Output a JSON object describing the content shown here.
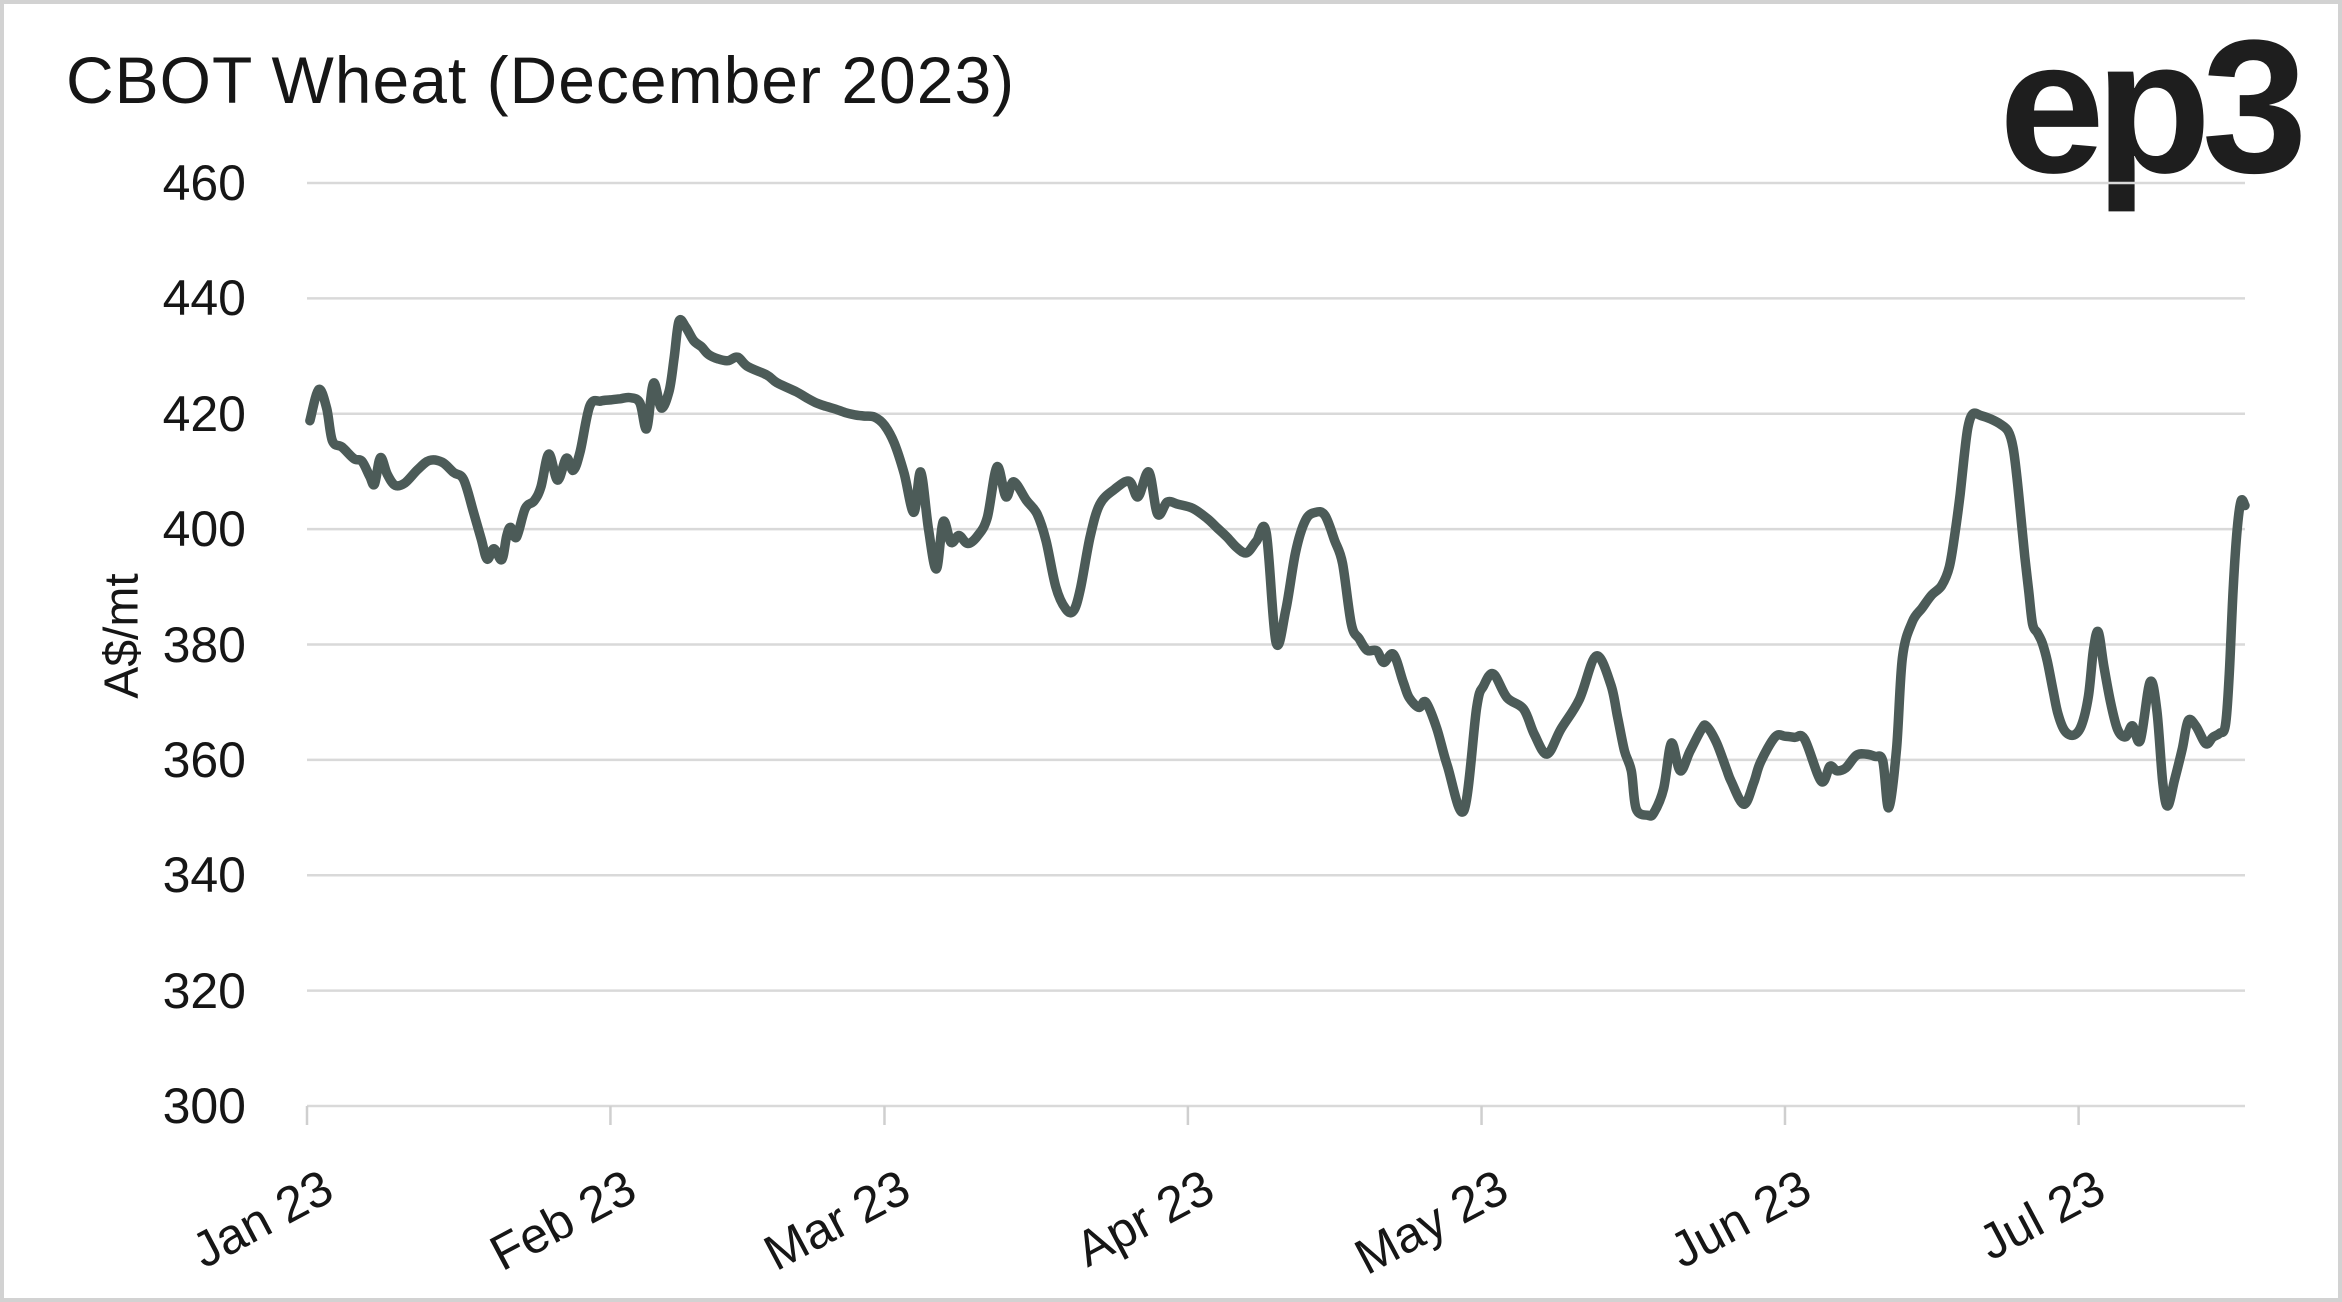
{
  "header": {
    "title": "CBOT Wheat (December 2023)",
    "logo_text": "ep3"
  },
  "colors": {
    "line": "#4c5b58",
    "grid": "#d9d9d9",
    "axis": "#cfcfcf",
    "text": "#161616",
    "logo": "#1e1e1e",
    "frame_border": "#d2d2d2"
  },
  "chart_data": {
    "type": "line",
    "title": "CBOT Wheat (December 2023)",
    "xlabel": "",
    "ylabel": "A$/mt",
    "ylim": [
      300,
      460
    ],
    "ytick_interval": 20,
    "yticks": [
      460,
      440,
      420,
      400,
      380,
      360,
      340,
      320,
      300
    ],
    "grid": "horizontal",
    "legend": "none",
    "x_range": [
      0,
      198
    ],
    "x_unit": "days since 1 Jan 2023",
    "xtick_labels": [
      "Jan 23",
      "Feb 23",
      "Mar 23",
      "Apr 23",
      "May 23",
      "Jun 23",
      "Jul 23"
    ],
    "xtick_days": [
      0,
      31,
      59,
      90,
      120,
      151,
      181
    ],
    "series": [
      {
        "name": "CBOT Wheat December 2023 futures (A$/mt)",
        "color": "#4c5b58",
        "points": [
          [
            0.3,
            418.8
          ],
          [
            1.2,
            424.2
          ],
          [
            2,
            421.0
          ],
          [
            2.6,
            415.3
          ],
          [
            3.6,
            414.2
          ],
          [
            4.8,
            412.2
          ],
          [
            5.6,
            411.8
          ],
          [
            6.4,
            409.2
          ],
          [
            6.9,
            407.8
          ],
          [
            7.5,
            412.4
          ],
          [
            8.2,
            409.5
          ],
          [
            9,
            407.6
          ],
          [
            10,
            408.0
          ],
          [
            11.3,
            410.3
          ],
          [
            12.5,
            411.9
          ],
          [
            13.8,
            411.6
          ],
          [
            15,
            409.8
          ],
          [
            16,
            408.6
          ],
          [
            17,
            403.0
          ],
          [
            17.8,
            398.3
          ],
          [
            18.4,
            394.8
          ],
          [
            19.1,
            396.6
          ],
          [
            19.9,
            394.7
          ],
          [
            20.4,
            398.8
          ],
          [
            20.8,
            400.3
          ],
          [
            21.4,
            398.6
          ],
          [
            22.3,
            403.6
          ],
          [
            23.2,
            404.9
          ],
          [
            23.9,
            407.3
          ],
          [
            24.7,
            413.0
          ],
          [
            25.6,
            408.5
          ],
          [
            26.5,
            412.3
          ],
          [
            27.2,
            410.2
          ],
          [
            27.9,
            413.4
          ],
          [
            28.9,
            421.4
          ],
          [
            30,
            422.2
          ],
          [
            31,
            422.4
          ],
          [
            32,
            422.6
          ],
          [
            33,
            422.8
          ],
          [
            34,
            421.9
          ],
          [
            34.7,
            417.4
          ],
          [
            35.4,
            425.3
          ],
          [
            36.2,
            421.0
          ],
          [
            37,
            424.0
          ],
          [
            37.5,
            429.5
          ],
          [
            38,
            436.0
          ],
          [
            38.7,
            435.0
          ],
          [
            39.5,
            432.7
          ],
          [
            40.3,
            431.6
          ],
          [
            41,
            430.3
          ],
          [
            42,
            429.5
          ],
          [
            43,
            429.2
          ],
          [
            44,
            429.8
          ],
          [
            45,
            428.2
          ],
          [
            47,
            426.7
          ],
          [
            48,
            425.4
          ],
          [
            50,
            423.8
          ],
          [
            51,
            422.8
          ],
          [
            52,
            421.9
          ],
          [
            53,
            421.3
          ],
          [
            54,
            420.8
          ],
          [
            55,
            420.2
          ],
          [
            56,
            419.8
          ],
          [
            57,
            419.6
          ],
          [
            58,
            419.4
          ],
          [
            59,
            418.0
          ],
          [
            60,
            414.9
          ],
          [
            61,
            409.7
          ],
          [
            62,
            402.9
          ],
          [
            62.7,
            409.9
          ],
          [
            63.5,
            400.0
          ],
          [
            64.3,
            393.1
          ],
          [
            65,
            401.3
          ],
          [
            65.8,
            397.7
          ],
          [
            66.6,
            398.9
          ],
          [
            67.5,
            397.5
          ],
          [
            68.5,
            398.8
          ],
          [
            69.5,
            402.0
          ],
          [
            70.5,
            410.8
          ],
          [
            71.4,
            405.6
          ],
          [
            72.2,
            408.2
          ],
          [
            73.5,
            405.0
          ],
          [
            74.6,
            402.6
          ],
          [
            75.5,
            398.0
          ],
          [
            76.5,
            390.0
          ],
          [
            77.5,
            386.2
          ],
          [
            78.3,
            385.8
          ],
          [
            79,
            389.5
          ],
          [
            80,
            398.6
          ],
          [
            81,
            404.3
          ],
          [
            82.5,
            406.9
          ],
          [
            84,
            408.3
          ],
          [
            84.9,
            405.6
          ],
          [
            86,
            409.9
          ],
          [
            86.9,
            402.6
          ],
          [
            87.9,
            404.7
          ],
          [
            89,
            404.3
          ],
          [
            90.5,
            403.6
          ],
          [
            92,
            401.8
          ],
          [
            93,
            400.2
          ],
          [
            94,
            398.6
          ],
          [
            95,
            396.8
          ],
          [
            96,
            395.9
          ],
          [
            97,
            397.9
          ],
          [
            98,
            399.4
          ],
          [
            99,
            380.4
          ],
          [
            100,
            386.0
          ],
          [
            101,
            396.0
          ],
          [
            102,
            401.5
          ],
          [
            103,
            402.9
          ],
          [
            104,
            402.4
          ],
          [
            105,
            398.0
          ],
          [
            105.8,
            394.0
          ],
          [
            106.7,
            383.5
          ],
          [
            107.5,
            381.0
          ],
          [
            108.3,
            379.0
          ],
          [
            109.3,
            378.9
          ],
          [
            110,
            376.9
          ],
          [
            111,
            378.3
          ],
          [
            112,
            373.5
          ],
          [
            112.6,
            370.8
          ],
          [
            113.6,
            369.1
          ],
          [
            114.3,
            370.0
          ],
          [
            115.4,
            365.6
          ],
          [
            116.5,
            359.0
          ],
          [
            118.2,
            351.2
          ],
          [
            119.5,
            369.1
          ],
          [
            120.2,
            372.8
          ],
          [
            121.2,
            374.9
          ],
          [
            122.6,
            370.8
          ],
          [
            124.3,
            368.8
          ],
          [
            125.4,
            364.4
          ],
          [
            126.7,
            361.0
          ],
          [
            128.1,
            365.3
          ],
          [
            130,
            370.5
          ],
          [
            131.7,
            378.0
          ],
          [
            133.2,
            373.1
          ],
          [
            133.9,
            367.4
          ],
          [
            134.6,
            361.6
          ],
          [
            135.3,
            358.1
          ],
          [
            135.8,
            351.5
          ],
          [
            137,
            350.4
          ],
          [
            137.6,
            350.8
          ],
          [
            138.6,
            355.0
          ],
          [
            139.4,
            362.9
          ],
          [
            140.3,
            358.1
          ],
          [
            141.3,
            361.5
          ],
          [
            142.5,
            365.4
          ],
          [
            143,
            365.8
          ],
          [
            144,
            363.0
          ],
          [
            145,
            358.5
          ],
          [
            145.5,
            356.3
          ],
          [
            146.8,
            352.3
          ],
          [
            147.8,
            356.0
          ],
          [
            148.5,
            359.6
          ],
          [
            150,
            364.0
          ],
          [
            151,
            364.1
          ],
          [
            152,
            363.9
          ],
          [
            153,
            363.6
          ],
          [
            154.7,
            356.3
          ],
          [
            155.6,
            358.9
          ],
          [
            156.3,
            358.1
          ],
          [
            157.2,
            358.6
          ],
          [
            158.3,
            360.8
          ],
          [
            159.3,
            361.0
          ],
          [
            160.2,
            360.6
          ],
          [
            161,
            359.8
          ],
          [
            161.6,
            351.7
          ],
          [
            162.4,
            362.0
          ],
          [
            163,
            377.7
          ],
          [
            164,
            383.9
          ],
          [
            165,
            386.3
          ],
          [
            166,
            388.6
          ],
          [
            167,
            390.2
          ],
          [
            167.8,
            393.5
          ],
          [
            168.4,
            399.7
          ],
          [
            168.9,
            406.1
          ],
          [
            169.3,
            412.5
          ],
          [
            169.7,
            417.7
          ],
          [
            170.2,
            420.0
          ],
          [
            171,
            419.7
          ],
          [
            172,
            419.1
          ],
          [
            173,
            418.2
          ],
          [
            173.8,
            417.0
          ],
          [
            174.3,
            414.2
          ],
          [
            174.7,
            409.0
          ],
          [
            175.1,
            402.1
          ],
          [
            175.5,
            395.2
          ],
          [
            175.9,
            389.3
          ],
          [
            176.3,
            383.5
          ],
          [
            176.8,
            382.0
          ],
          [
            177.3,
            380.2
          ],
          [
            177.8,
            377.1
          ],
          [
            178.4,
            371.9
          ],
          [
            178.9,
            367.9
          ],
          [
            179.6,
            365.0
          ],
          [
            180.5,
            364.3
          ],
          [
            181.3,
            366.0
          ],
          [
            182,
            371.0
          ],
          [
            182.5,
            378.9
          ],
          [
            183,
            382.2
          ],
          [
            183.6,
            376.0
          ],
          [
            184.3,
            369.7
          ],
          [
            185,
            365.2
          ],
          [
            185.8,
            364.0
          ],
          [
            186.5,
            365.9
          ],
          [
            187.3,
            363.4
          ],
          [
            188.3,
            373.5
          ],
          [
            189,
            368.5
          ],
          [
            189.6,
            356.0
          ],
          [
            190.1,
            352.0
          ],
          [
            190.8,
            356.5
          ],
          [
            191.6,
            362.0
          ],
          [
            192.2,
            366.8
          ],
          [
            193,
            365.8
          ],
          [
            194,
            362.8
          ],
          [
            194.7,
            363.9
          ],
          [
            195.4,
            364.6
          ],
          [
            196,
            366.0
          ],
          [
            196.4,
            375.0
          ],
          [
            196.8,
            390.0
          ],
          [
            197.2,
            400.0
          ],
          [
            197.6,
            404.9
          ],
          [
            198,
            404.1
          ]
        ]
      }
    ]
  }
}
